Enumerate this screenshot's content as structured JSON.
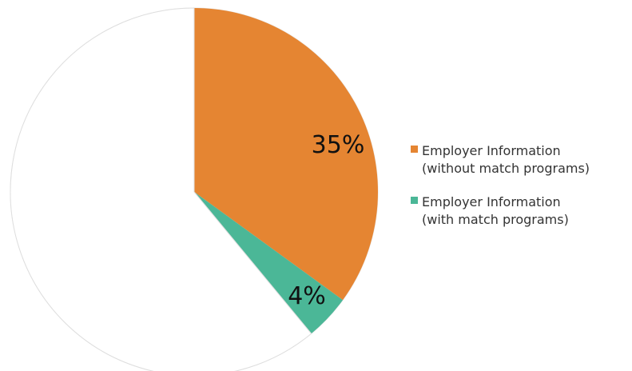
{
  "chart_data": {
    "type": "pie",
    "title": "",
    "start_angle": "12 o'clock",
    "direction": "clockwise",
    "legend_position": "right",
    "slices": [
      {
        "label": "Employer Information\n(without match programs)",
        "value": 35,
        "display": "35%",
        "color": "#E58532",
        "in_legend": true
      },
      {
        "label": "Employer Information\n(with match programs)",
        "value": 4,
        "display": "4%",
        "color": "#4BB797",
        "in_legend": true
      },
      {
        "label": "",
        "value": 61,
        "display": "",
        "color": "#FFFFFF",
        "in_legend": false
      }
    ]
  }
}
